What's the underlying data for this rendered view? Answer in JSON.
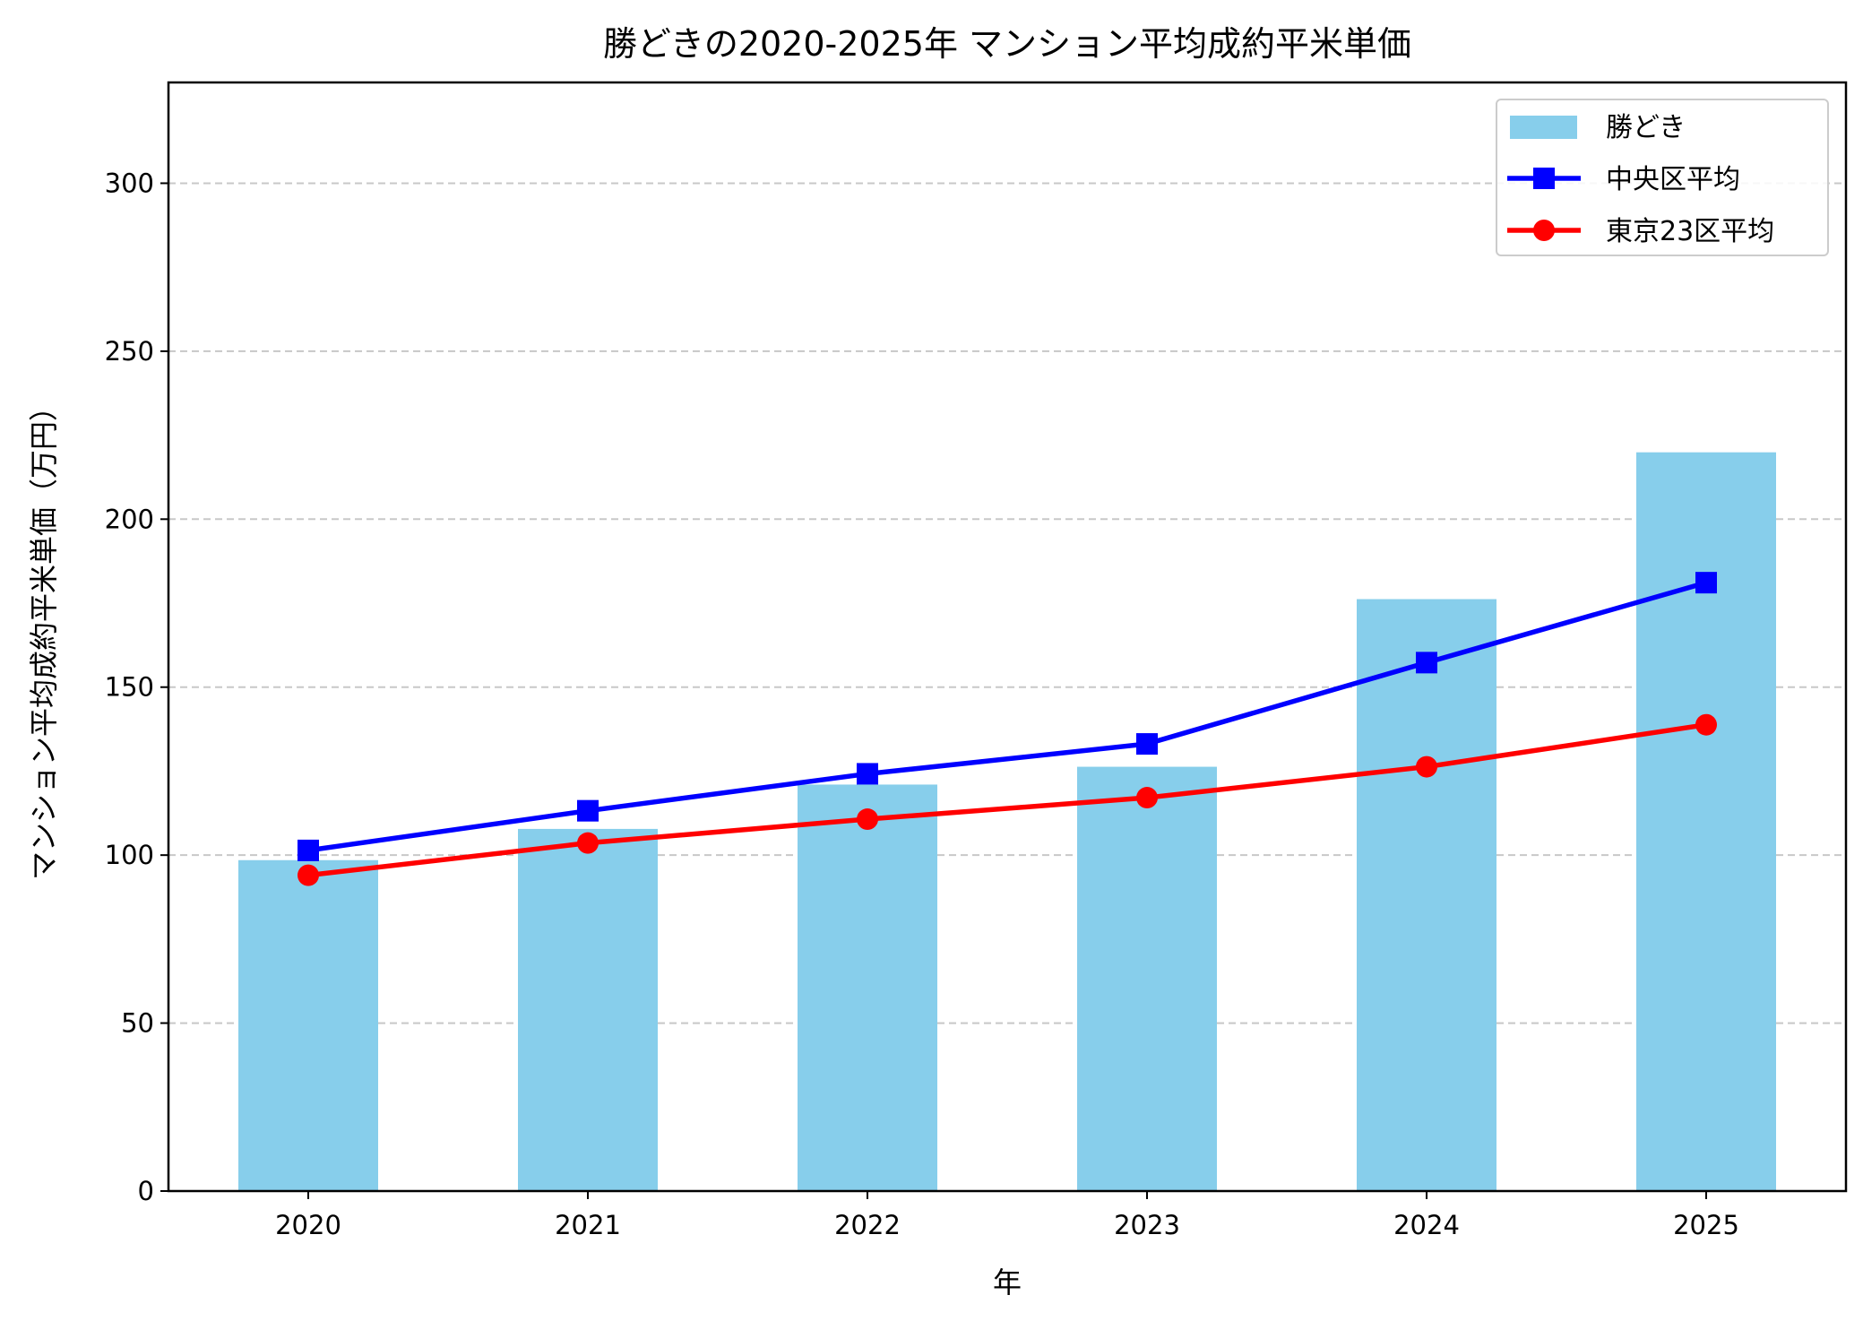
{
  "chart_data": {
    "type": "bar+line",
    "title": "勝どきの2020-2025年 マンション平均成約平米単価",
    "xlabel": "年",
    "ylabel": "マンション平均成約平米単価（万円）",
    "categories": [
      "2020",
      "2021",
      "2022",
      "2023",
      "2024",
      "2025"
    ],
    "ylim": [
      0,
      330
    ],
    "yticks": [
      0,
      50,
      100,
      150,
      200,
      250,
      300
    ],
    "grid": "y dashed",
    "legend_position": "top-right",
    "series": [
      {
        "name": "勝どき",
        "kind": "bar",
        "color": "#87CEEB",
        "values": [
          98.5,
          107.8,
          121.0,
          126.3,
          176.2,
          219.9
        ]
      },
      {
        "name": "中央区平均",
        "kind": "line",
        "marker": "square",
        "color": "#0000FF",
        "values": [
          101.4,
          113.2,
          124.2,
          133.1,
          157.3,
          181.1
        ]
      },
      {
        "name": "東京23区平均",
        "kind": "line",
        "marker": "circle",
        "color": "#FF0000",
        "values": [
          94.0,
          103.6,
          110.7,
          117.1,
          126.3,
          138.8
        ]
      }
    ]
  }
}
